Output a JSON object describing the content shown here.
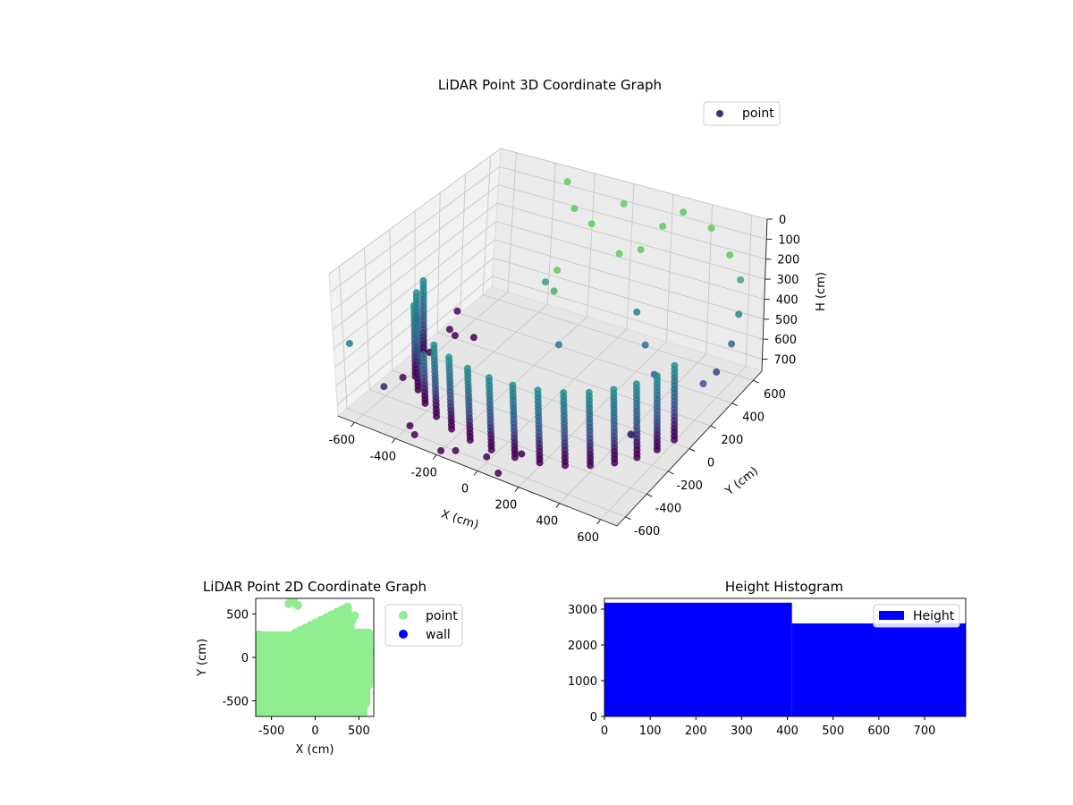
{
  "chart_data": [
    {
      "type": "scatter",
      "dims": 3,
      "title": "LiDAR Point 3D Coordinate Graph",
      "xlabel": "X (cm)",
      "ylabel": "Y (cm)",
      "zlabel": "H (cm)",
      "xlim": [
        -680,
        680
      ],
      "ylim": [
        -680,
        680
      ],
      "zlim": [
        0,
        760
      ],
      "z_inverted": true,
      "xticks": [
        -600,
        -400,
        -200,
        0,
        200,
        400,
        600
      ],
      "yticks": [
        -600,
        -400,
        -200,
        0,
        200,
        400,
        600
      ],
      "zticks": [
        0,
        100,
        200,
        300,
        400,
        500,
        600,
        700
      ],
      "colormap": "viridis",
      "legend": {
        "label": "point",
        "position": "top-right"
      },
      "series": [
        {
          "name": "point",
          "shape": "arc wall sampled at every 10 degrees (radius ~630 cm, angles -170 to -10 deg) with height layers every 20 cm from 340 to 720 cm, plus scattered outliers",
          "wall": {
            "radius": 630,
            "angle_start": -170,
            "angle_end": -10,
            "angle_step": 10,
            "h_start": 340,
            "h_end": 720,
            "h_step": 20
          },
          "outliers": [
            [
              -600,
              -250,
              740
            ],
            [
              -580,
              -50,
              700
            ],
            [
              -550,
              -500,
              640
            ],
            [
              -560,
              140,
              700
            ],
            [
              -620,
              200,
              720
            ],
            [
              -650,
              -600,
              400
            ],
            [
              -640,
              300,
              680
            ],
            [
              -500,
              200,
              720
            ],
            [
              300,
              600,
              20
            ],
            [
              400,
              680,
              120
            ],
            [
              520,
              640,
              200
            ],
            [
              600,
              600,
              280
            ],
            [
              650,
              500,
              380
            ],
            [
              660,
              420,
              480
            ],
            [
              640,
              200,
              560
            ],
            [
              620,
              360,
              600
            ],
            [
              200,
              600,
              120
            ],
            [
              150,
              500,
              200
            ],
            [
              100,
              400,
              180
            ],
            [
              0,
              600,
              60
            ],
            [
              -100,
              500,
              140
            ],
            [
              250,
              300,
              380
            ],
            [
              350,
              200,
              460
            ],
            [
              450,
              100,
              520
            ],
            [
              550,
              -300,
              560
            ],
            [
              500,
              -200,
              640
            ],
            [
              -300,
              620,
              40
            ],
            [
              -200,
              520,
              100
            ],
            [
              -150,
              200,
              300
            ],
            [
              -50,
              100,
              260
            ],
            [
              0,
              40,
              100
            ],
            [
              60,
              -50,
              420
            ],
            [
              -350,
              -600,
              760
            ],
            [
              -150,
              -600,
              760
            ],
            [
              -400,
              -550,
              760
            ],
            [
              -200,
              -640,
              760
            ],
            [
              80,
              -640,
              760
            ],
            [
              -20,
              -560,
              760
            ],
            [
              120,
              -500,
              720
            ]
          ]
        }
      ]
    },
    {
      "type": "scatter",
      "dims": 2,
      "title": "LiDAR Point 2D Coordinate Graph",
      "xlabel": "X (cm)",
      "ylabel": "Y (cm)",
      "xlim": [
        -680,
        670
      ],
      "ylim": [
        -680,
        680
      ],
      "xticks": [
        -500,
        0,
        500
      ],
      "yticks": [
        -500,
        0,
        500
      ],
      "series": [
        {
          "name": "point",
          "color": "#90ee90",
          "shape": "dense blob bounded by x in [-680,620], y in [-680,650]"
        },
        {
          "name": "wall",
          "color": "#0000ff",
          "values": []
        }
      ],
      "legend": {
        "position": "outside-right"
      }
    },
    {
      "type": "bar",
      "subtype": "histogram",
      "title": "Height Histogram",
      "xlim": [
        0,
        790
      ],
      "ylim": [
        0,
        3300
      ],
      "xticks": [
        0,
        100,
        200,
        300,
        400,
        500,
        600,
        700
      ],
      "yticks": [
        0,
        1000,
        2000,
        3000
      ],
      "bins": [
        {
          "from": 0,
          "to": 410,
          "count": 3180
        },
        {
          "from": 410,
          "to": 790,
          "count": 2600
        }
      ],
      "series": [
        {
          "name": "Height",
          "color": "#0000ff"
        }
      ],
      "legend": {
        "position": "top-right"
      }
    }
  ]
}
